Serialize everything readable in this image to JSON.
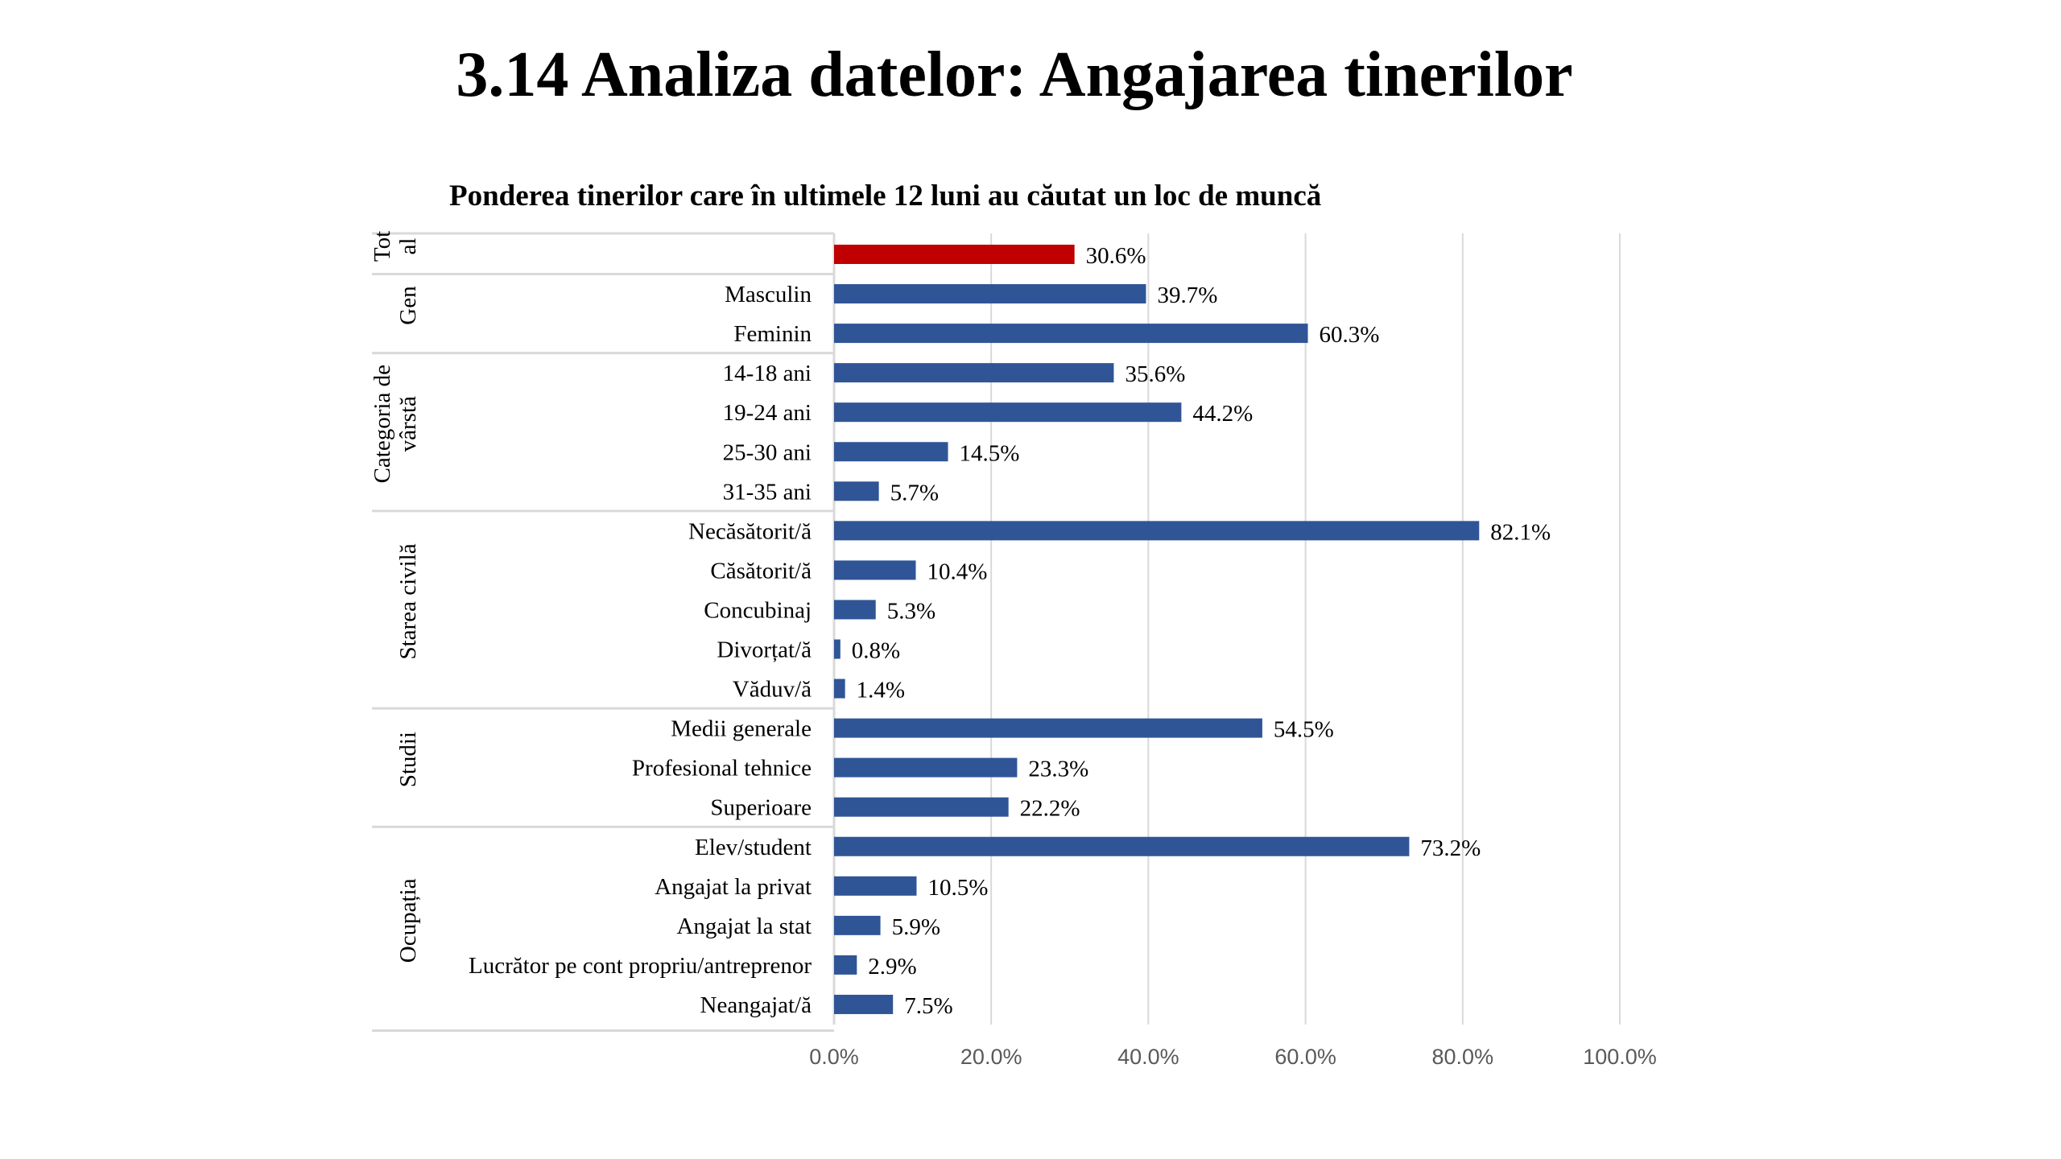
{
  "title": "3.14 Analiza datelor: Angajarea tinerilor",
  "chart_data": {
    "type": "bar",
    "orientation": "horizontal",
    "title": "Ponderea tinerilor care în ultimele 12 luni au căutat un loc de muncă",
    "xlim": [
      0,
      100
    ],
    "x_ticks": [
      "0.0%",
      "20.0%",
      "40.0%",
      "60.0%",
      "80.0%",
      "100.0%"
    ],
    "grid": "vertical",
    "colors": {
      "total": "#C00000",
      "default": "#2F5597"
    },
    "groups": [
      {
        "name": [
          "Tot",
          "al"
        ],
        "categories": [
          ""
        ],
        "values": [
          30.6
        ],
        "labels": [
          "30.6%"
        ],
        "highlight": true
      },
      {
        "name": [
          "Gen"
        ],
        "categories": [
          "Masculin",
          "Feminin"
        ],
        "values": [
          39.7,
          60.3
        ],
        "labels": [
          "39.7%",
          "60.3%"
        ]
      },
      {
        "name": [
          "Categoria de",
          "vârstă"
        ],
        "categories": [
          "14-18 ani",
          "19-24 ani",
          "25-30 ani",
          "31-35 ani"
        ],
        "values": [
          35.6,
          44.2,
          14.5,
          5.7
        ],
        "labels": [
          "35.6%",
          "44.2%",
          "14.5%",
          "5.7%"
        ]
      },
      {
        "name": [
          "Starea civilă"
        ],
        "categories": [
          "Necăsătorit/ă",
          "Căsătorit/ă",
          "Concubinaj",
          "Divorțat/ă",
          "Văduv/ă"
        ],
        "values": [
          82.1,
          10.4,
          5.3,
          0.8,
          1.4
        ],
        "labels": [
          "82.1%",
          "10.4%",
          "5.3%",
          "0.8%",
          "1.4%"
        ]
      },
      {
        "name": [
          "Studii"
        ],
        "categories": [
          "Medii generale",
          "Profesional tehnice",
          "Superioare"
        ],
        "values": [
          54.5,
          23.3,
          22.2
        ],
        "labels": [
          "54.5%",
          "23.3%",
          "22.2%"
        ]
      },
      {
        "name": [
          "Ocupația"
        ],
        "categories": [
          "Elev/student",
          "Angajat la privat",
          "Angajat la stat",
          "Lucrător pe cont propriu/antreprenor",
          "Neangajat/ă"
        ],
        "values": [
          73.2,
          10.5,
          5.9,
          2.9,
          7.5
        ],
        "labels": [
          "73.2%",
          "10.5%",
          "5.9%",
          "2.9%",
          "7.5%"
        ]
      }
    ]
  }
}
